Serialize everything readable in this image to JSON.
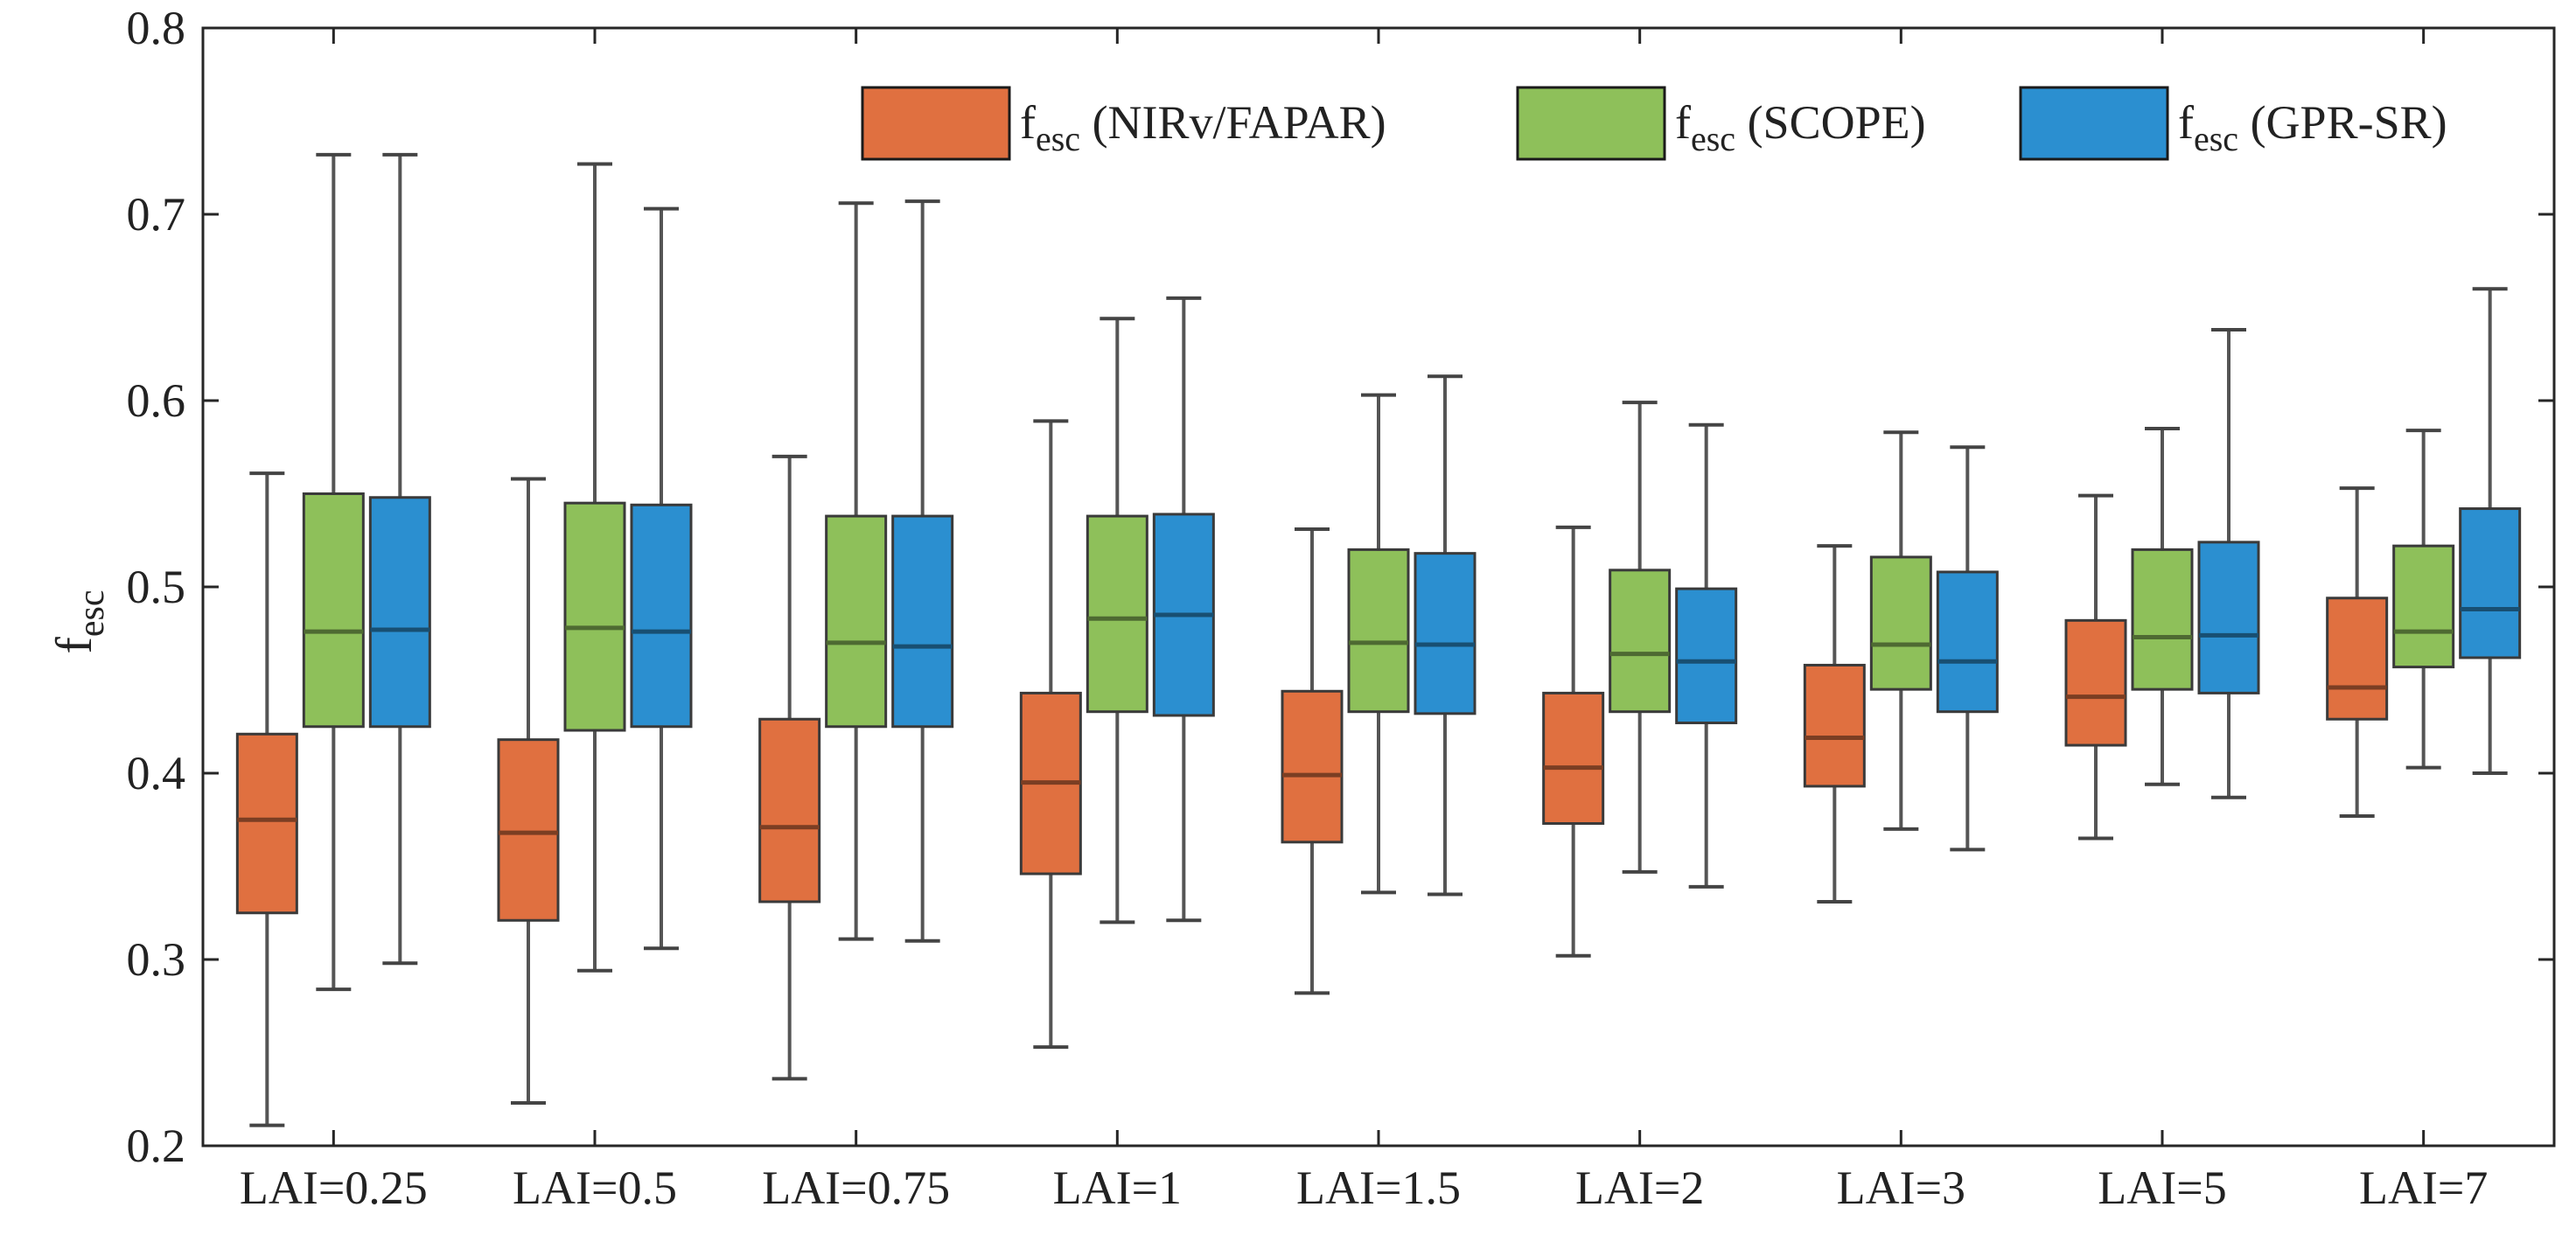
{
  "chart_data": {
    "type": "box",
    "ylabel": "f",
    "ylabel_sub": "esc",
    "ylim": [
      0.2,
      0.8
    ],
    "yticks": [
      0.2,
      0.3,
      0.4,
      0.5,
      0.6,
      0.7,
      0.8
    ],
    "ytick_labels": [
      "0.2",
      "0.3",
      "0.4",
      "0.5",
      "0.6",
      "0.7",
      "0.8"
    ],
    "categories": [
      "LAI=0.25",
      "LAI=0.5",
      "LAI=0.75",
      "LAI=1",
      "LAI=1.5",
      "LAI=2",
      "LAI=3",
      "LAI=5",
      "LAI=7"
    ],
    "legend_position": "top-right",
    "grid": false,
    "series": [
      {
        "name": "f",
        "name_sub": "esc",
        "name_suffix": " (NIRv/FAPAR)",
        "color": "#e07040",
        "boxes": [
          {
            "min": 0.211,
            "q1": 0.325,
            "median": 0.375,
            "q3": 0.421,
            "max": 0.561
          },
          {
            "min": 0.223,
            "q1": 0.321,
            "median": 0.368,
            "q3": 0.418,
            "max": 0.558
          },
          {
            "min": 0.236,
            "q1": 0.331,
            "median": 0.371,
            "q3": 0.429,
            "max": 0.57
          },
          {
            "min": 0.253,
            "q1": 0.346,
            "median": 0.395,
            "q3": 0.443,
            "max": 0.589
          },
          {
            "min": 0.282,
            "q1": 0.363,
            "median": 0.399,
            "q3": 0.444,
            "max": 0.531
          },
          {
            "min": 0.302,
            "q1": 0.373,
            "median": 0.403,
            "q3": 0.443,
            "max": 0.532
          },
          {
            "min": 0.331,
            "q1": 0.393,
            "median": 0.419,
            "q3": 0.458,
            "max": 0.522
          },
          {
            "min": 0.365,
            "q1": 0.415,
            "median": 0.441,
            "q3": 0.482,
            "max": 0.549
          },
          {
            "min": 0.377,
            "q1": 0.429,
            "median": 0.446,
            "q3": 0.494,
            "max": 0.553
          }
        ]
      },
      {
        "name": "f",
        "name_sub": "esc",
        "name_suffix": " (SCOPE)",
        "color": "#8ec05a",
        "boxes": [
          {
            "min": 0.284,
            "q1": 0.425,
            "median": 0.476,
            "q3": 0.55,
            "max": 0.732
          },
          {
            "min": 0.294,
            "q1": 0.423,
            "median": 0.478,
            "q3": 0.545,
            "max": 0.727
          },
          {
            "min": 0.311,
            "q1": 0.425,
            "median": 0.47,
            "q3": 0.538,
            "max": 0.706
          },
          {
            "min": 0.32,
            "q1": 0.433,
            "median": 0.483,
            "q3": 0.538,
            "max": 0.644
          },
          {
            "min": 0.336,
            "q1": 0.433,
            "median": 0.47,
            "q3": 0.52,
            "max": 0.603
          },
          {
            "min": 0.347,
            "q1": 0.433,
            "median": 0.464,
            "q3": 0.509,
            "max": 0.599
          },
          {
            "min": 0.37,
            "q1": 0.445,
            "median": 0.469,
            "q3": 0.516,
            "max": 0.583
          },
          {
            "min": 0.394,
            "q1": 0.445,
            "median": 0.473,
            "q3": 0.52,
            "max": 0.585
          },
          {
            "min": 0.403,
            "q1": 0.457,
            "median": 0.476,
            "q3": 0.522,
            "max": 0.584
          }
        ]
      },
      {
        "name": "f",
        "name_sub": "esc",
        "name_suffix": " (GPR-SR)",
        "color": "#2b8fd0",
        "boxes": [
          {
            "min": 0.298,
            "q1": 0.425,
            "median": 0.477,
            "q3": 0.548,
            "max": 0.732
          },
          {
            "min": 0.306,
            "q1": 0.425,
            "median": 0.476,
            "q3": 0.544,
            "max": 0.703
          },
          {
            "min": 0.31,
            "q1": 0.425,
            "median": 0.468,
            "q3": 0.538,
            "max": 0.707
          },
          {
            "min": 0.321,
            "q1": 0.431,
            "median": 0.485,
            "q3": 0.539,
            "max": 0.655
          },
          {
            "min": 0.335,
            "q1": 0.432,
            "median": 0.469,
            "q3": 0.518,
            "max": 0.613
          },
          {
            "min": 0.339,
            "q1": 0.427,
            "median": 0.46,
            "q3": 0.499,
            "max": 0.587
          },
          {
            "min": 0.359,
            "q1": 0.433,
            "median": 0.46,
            "q3": 0.508,
            "max": 0.575
          },
          {
            "min": 0.387,
            "q1": 0.443,
            "median": 0.474,
            "q3": 0.524,
            "max": 0.638
          },
          {
            "min": 0.4,
            "q1": 0.462,
            "median": 0.488,
            "q3": 0.542,
            "max": 0.66
          }
        ]
      }
    ]
  }
}
